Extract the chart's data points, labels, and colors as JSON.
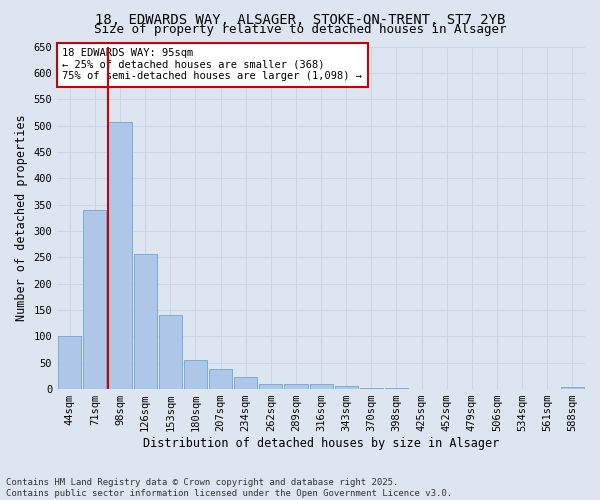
{
  "title1": "18, EDWARDS WAY, ALSAGER, STOKE-ON-TRENT, ST7 2YB",
  "title2": "Size of property relative to detached houses in Alsager",
  "xlabel": "Distribution of detached houses by size in Alsager",
  "ylabel": "Number of detached properties",
  "categories": [
    "44sqm",
    "71sqm",
    "98sqm",
    "126sqm",
    "153sqm",
    "180sqm",
    "207sqm",
    "234sqm",
    "262sqm",
    "289sqm",
    "316sqm",
    "343sqm",
    "370sqm",
    "398sqm",
    "425sqm",
    "452sqm",
    "479sqm",
    "506sqm",
    "534sqm",
    "561sqm",
    "588sqm"
  ],
  "values": [
    100,
    340,
    507,
    257,
    140,
    55,
    38,
    22,
    9,
    10,
    10,
    5,
    3,
    2,
    1,
    1,
    1,
    0,
    0,
    0,
    4
  ],
  "bar_color": "#aec6e8",
  "bar_edge_color": "#7aadd4",
  "background_color": "#dde6f0",
  "vline_color": "#cc0000",
  "annotation_text": "18 EDWARDS WAY: 95sqm\n← 25% of detached houses are smaller (368)\n75% of semi-detached houses are larger (1,098) →",
  "annotation_box_color": "#ffffff",
  "annotation_box_edge_color": "#cc0000",
  "ylim": [
    0,
    650
  ],
  "yticks": [
    0,
    50,
    100,
    150,
    200,
    250,
    300,
    350,
    400,
    450,
    500,
    550,
    600,
    650
  ],
  "footnote": "Contains HM Land Registry data © Crown copyright and database right 2025.\nContains public sector information licensed under the Open Government Licence v3.0.",
  "title_fontsize": 10,
  "subtitle_fontsize": 9,
  "axis_label_fontsize": 8.5,
  "tick_fontsize": 7.5,
  "annotation_fontsize": 7.5,
  "footnote_fontsize": 6.5,
  "grid_color": "#c8d6e8"
}
